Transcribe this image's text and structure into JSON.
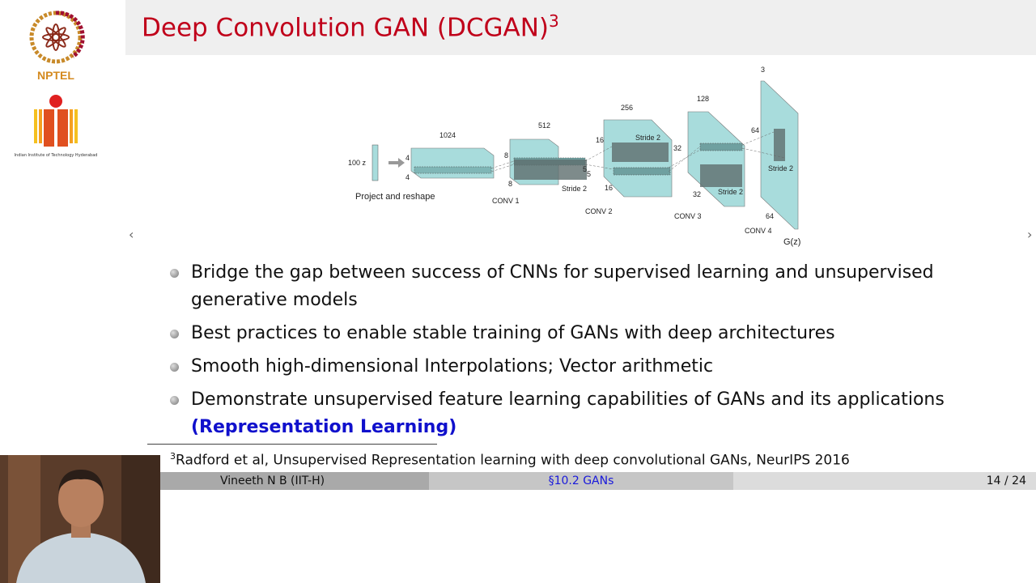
{
  "slide": {
    "title": "Deep Convolution GAN (DCGAN)",
    "title_sup": "3"
  },
  "logos": {
    "nptel": "NPTEL",
    "iith": "Indian Institute of Technology Hyderabad"
  },
  "diagram": {
    "input_label": "100 z",
    "project": "Project and reshape",
    "widths": [
      "1024",
      "512",
      "256",
      "128",
      "3"
    ],
    "dims": [
      "4",
      "4",
      "8",
      "8",
      "16",
      "16",
      "32",
      "32",
      "64",
      "64"
    ],
    "kernel": "5",
    "stride": "Stride 2",
    "layers": [
      "CONV 1",
      "CONV 2",
      "CONV 3",
      "CONV 4"
    ],
    "output": "G(z)",
    "fill": "#a8dcdc"
  },
  "bullets": [
    {
      "text": "Bridge the gap between success of CNNs for supervised learning and unsupervised generative models"
    },
    {
      "text": "Best practices to enable stable training of GANs with deep architectures"
    },
    {
      "text": "Smooth high-dimensional Interpolations; Vector arithmetic"
    },
    {
      "text": "Demonstrate unsupervised feature learning capabilities of GANs and its applications ",
      "highlight": "(Representation Learning)"
    }
  ],
  "footnote": {
    "mark": "3",
    "text": "Radford et al, Unsupervised Representation learning with deep convolutional GANs, NeurIPS 2016"
  },
  "footer": {
    "author": "Vineeth N B  (IIT-H)",
    "section": "§10.2 GANs",
    "page": "14 / 24"
  },
  "nav": {
    "prev": "‹",
    "next": "›"
  }
}
